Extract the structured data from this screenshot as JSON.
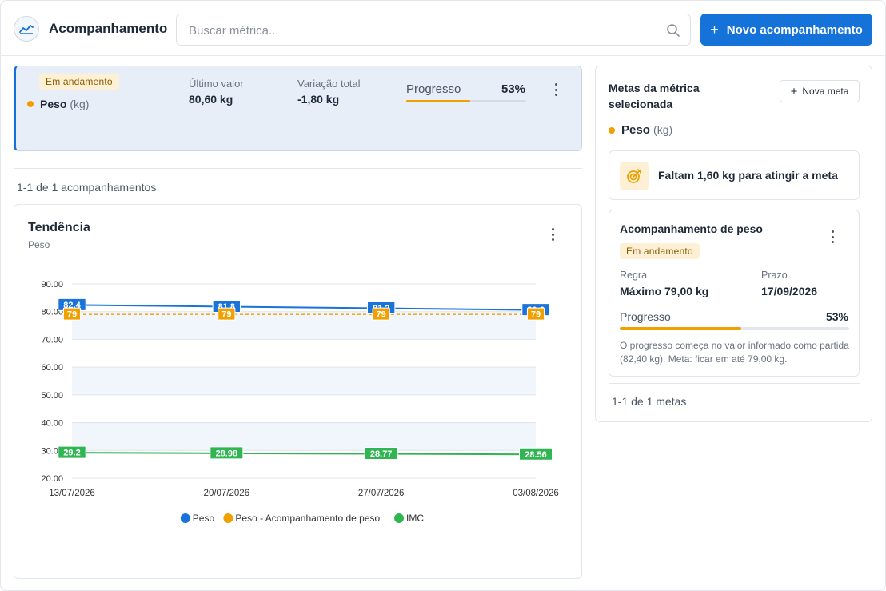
{
  "app": {
    "title": "Acompanhamento",
    "icon": "line-chart-icon"
  },
  "search": {
    "placeholder": "Buscar métrica..."
  },
  "new_tracking_button": {
    "label": "Novo acompanhamento"
  },
  "tracking_card": {
    "status": "Em andamento",
    "metric_name": "Peso",
    "metric_unit": "(kg)",
    "last_value_label": "Último valor",
    "last_value": "80,60 kg",
    "variation_label": "Variação total",
    "variation": "-1,80 kg",
    "progress_label": "Progresso",
    "progress_pct": "53%",
    "progress_fraction": 0.53
  },
  "tracking_count": "1-1 de 1 acompanhamentos",
  "trend": {
    "title": "Tendência",
    "subtitle": "Peso"
  },
  "chart_data": {
    "type": "line",
    "x": [
      "13/07/2026",
      "20/07/2026",
      "27/07/2026",
      "03/08/2026"
    ],
    "ylim": [
      20,
      90
    ],
    "yticks": [
      "20.00",
      "30.00",
      "40.00",
      "50.00",
      "60.00",
      "70.00",
      "80.00",
      "90.00"
    ],
    "series": [
      {
        "name": "Peso",
        "color": "#1a73d9",
        "values": [
          82.4,
          81.8,
          81.2,
          80.6
        ],
        "labels": [
          "82.4",
          "81.8",
          "81.2",
          "80.6"
        ],
        "dashed": false
      },
      {
        "name": "Peso - Acompanhamento de peso",
        "color": "#f0a000",
        "values": [
          79,
          79,
          79,
          79
        ],
        "labels": [
          "79",
          "79",
          "79",
          "79"
        ],
        "dashed": true
      },
      {
        "name": "IMC",
        "color": "#2fb552",
        "values": [
          29.2,
          28.98,
          28.77,
          28.56
        ],
        "labels": [
          "29.2",
          "28.98",
          "28.77",
          "28.56"
        ],
        "dashed": false
      }
    ],
    "legend_position": "bottom",
    "grid": true
  },
  "goals_panel": {
    "title": "Metas da métrica selecionada",
    "new_goal_label": "Nova meta",
    "metric_name": "Peso",
    "metric_unit": "(kg)",
    "alert_text": "Faltam 1,60 kg para atingir a meta",
    "alert_icon": "target-icon",
    "goal": {
      "name": "Acompanhamento de peso",
      "status": "Em andamento",
      "rule_label": "Regra",
      "rule_value": "Máximo 79,00 kg",
      "deadline_label": "Prazo",
      "deadline_value": "17/09/2026",
      "progress_label": "Progresso",
      "progress_pct": "53%",
      "progress_fraction": 0.53,
      "note": "O progresso começa no valor informado como partida (82,40 kg). Meta: ficar em até 79,00 kg."
    },
    "count": "1-1 de 1 metas"
  }
}
